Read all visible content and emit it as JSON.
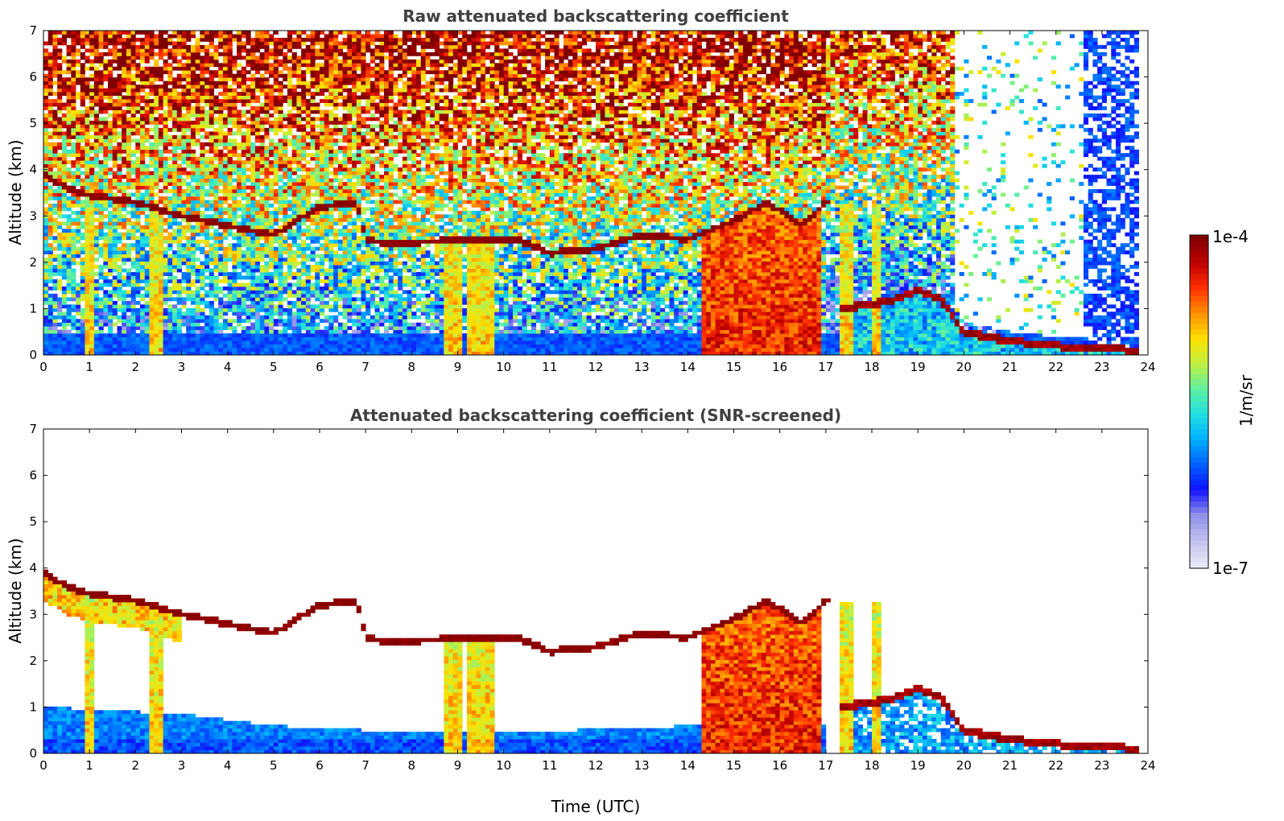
{
  "chart_data": [
    {
      "type": "heatmap",
      "title": "Raw attenuated backscattering coefficient",
      "ylabel": "Altitude (km)",
      "xlabel": "",
      "xlim": [
        0,
        24
      ],
      "ylim": [
        0,
        7
      ],
      "xticks": [
        "0",
        "1",
        "2",
        "3",
        "4",
        "5",
        "6",
        "7",
        "8",
        "9",
        "10",
        "11",
        "12",
        "13",
        "14",
        "15",
        "16",
        "17",
        "18",
        "19",
        "20",
        "21",
        "22",
        "23",
        "24"
      ],
      "yticks": [
        "0",
        "1",
        "2",
        "3",
        "4",
        "5",
        "6",
        "7"
      ],
      "screened": false,
      "cloud_layer": [
        [
          0,
          3.9
        ],
        [
          0.5,
          3.6
        ],
        [
          1,
          3.45
        ],
        [
          2,
          3.3
        ],
        [
          3,
          3.0
        ],
        [
          4,
          2.8
        ],
        [
          4.7,
          2.65
        ],
        [
          5,
          2.6
        ],
        [
          6,
          3.2
        ],
        [
          6.8,
          3.3
        ],
        [
          7,
          2.5
        ],
        [
          7.5,
          2.4
        ],
        [
          8.3,
          2.45
        ],
        [
          10.3,
          2.5
        ],
        [
          11,
          2.2
        ],
        [
          12,
          2.3
        ],
        [
          13,
          2.6
        ],
        [
          14,
          2.5
        ],
        [
          15,
          2.9
        ],
        [
          15.7,
          3.3
        ],
        [
          16.5,
          2.8
        ],
        [
          17,
          3.3
        ]
      ],
      "low_cloud": [
        [
          17.3,
          1.0
        ],
        [
          18,
          1.1
        ],
        [
          18.5,
          1.2
        ],
        [
          19,
          1.4
        ],
        [
          19.5,
          1.2
        ],
        [
          20,
          0.5
        ],
        [
          21,
          0.3
        ],
        [
          22,
          0.2
        ],
        [
          23.8,
          0.1
        ]
      ],
      "precip_bands": [
        [
          0.95,
          1.15
        ],
        [
          2.35,
          2.6
        ],
        [
          8.7,
          9.1
        ],
        [
          9.25,
          9.8
        ],
        [
          14.3,
          16.9
        ],
        [
          17.3,
          17.6
        ],
        [
          18.0,
          18.2
        ]
      ],
      "noise_clear_window": [
        19.8,
        22.6
      ],
      "data_end_time": 23.8
    },
    {
      "type": "heatmap",
      "title": "Attenuated backscattering coefficient (SNR-screened)",
      "ylabel": "Altitude (km)",
      "xlabel": "Time (UTC)",
      "xlim": [
        0,
        24
      ],
      "ylim": [
        0,
        7
      ],
      "xticks": [
        "0",
        "1",
        "2",
        "3",
        "4",
        "5",
        "6",
        "7",
        "8",
        "9",
        "10",
        "11",
        "12",
        "13",
        "14",
        "15",
        "16",
        "17",
        "18",
        "19",
        "20",
        "21",
        "22",
        "23",
        "24"
      ],
      "yticks": [
        "0",
        "1",
        "2",
        "3",
        "4",
        "5",
        "6",
        "7"
      ],
      "screened": true,
      "boundary_layer_top": [
        [
          0,
          1.0
        ],
        [
          3,
          0.85
        ],
        [
          5,
          0.6
        ],
        [
          7,
          0.5
        ],
        [
          8.7,
          0.5
        ],
        [
          10,
          0.45
        ],
        [
          14.2,
          0.6
        ]
      ]
    }
  ],
  "colorbar": {
    "label": "1/m/sr",
    "max_label": "1e-4",
    "min_label": "1e-7",
    "scale": "log",
    "range": [
      1e-07,
      0.0001
    ],
    "colormap": [
      "#e8e8f8",
      "#c0c0ee",
      "#9090e8",
      "#1010ff",
      "#0060ff",
      "#00b0ff",
      "#20e0e0",
      "#60f0a0",
      "#c0f040",
      "#ffe000",
      "#ff9000",
      "#ff3000",
      "#c00000",
      "#800000"
    ]
  }
}
